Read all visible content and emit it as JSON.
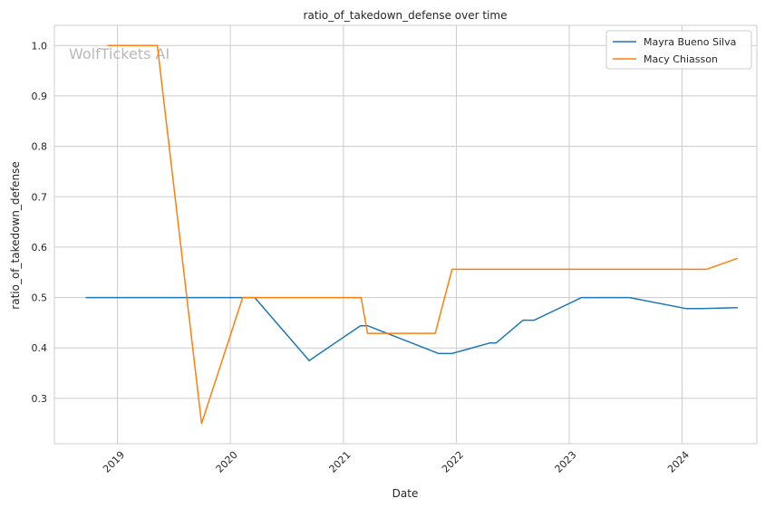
{
  "chart_data": {
    "type": "line",
    "title": "ratio_of_takedown_defense over time",
    "xlabel": "Date",
    "ylabel": "ratio_of_takedown_defense",
    "watermark": "WolfTickets AI",
    "x_ticks": [
      "2019",
      "2020",
      "2021",
      "2022",
      "2023",
      "2024"
    ],
    "y_ticks": [
      "0.3",
      "0.4",
      "0.5",
      "0.6",
      "0.7",
      "0.8",
      "0.9",
      "1.0"
    ],
    "xlim": [
      "2018-06-11",
      "2024-08-30"
    ],
    "ylim": [
      0.21,
      1.04
    ],
    "grid": true,
    "legend_position": "top-right",
    "series": [
      {
        "name": "Mayra Bueno Silva",
        "color": "#1f77b4",
        "points": [
          [
            "2018-09-20",
            0.5
          ],
          [
            "2020-02-10",
            0.5
          ],
          [
            "2020-03-20",
            0.5
          ],
          [
            "2020-09-12",
            0.375
          ],
          [
            "2021-02-25",
            0.444
          ],
          [
            "2021-03-20",
            0.444
          ],
          [
            "2021-11-05",
            0.389
          ],
          [
            "2021-12-18",
            0.389
          ],
          [
            "2022-04-20",
            0.41
          ],
          [
            "2022-05-10",
            0.41
          ],
          [
            "2022-08-05",
            0.455
          ],
          [
            "2022-09-10",
            0.455
          ],
          [
            "2023-02-10",
            0.5
          ],
          [
            "2023-07-15",
            0.5
          ],
          [
            "2024-01-15",
            0.478
          ],
          [
            "2024-03-05",
            0.478
          ],
          [
            "2024-06-29",
            0.48
          ]
        ]
      },
      {
        "name": "Macy Chiasson",
        "color": "#ff7f0e",
        "points": [
          [
            "2018-11-30",
            1.0
          ],
          [
            "2019-05-10",
            1.0
          ],
          [
            "2019-09-30",
            0.25
          ],
          [
            "2020-02-10",
            0.5
          ],
          [
            "2021-02-27",
            0.5
          ],
          [
            "2021-03-20",
            0.429
          ],
          [
            "2021-10-25",
            0.429
          ],
          [
            "2021-12-18",
            0.556
          ],
          [
            "2024-03-20",
            0.556
          ],
          [
            "2024-06-29",
            0.578
          ]
        ]
      }
    ]
  }
}
